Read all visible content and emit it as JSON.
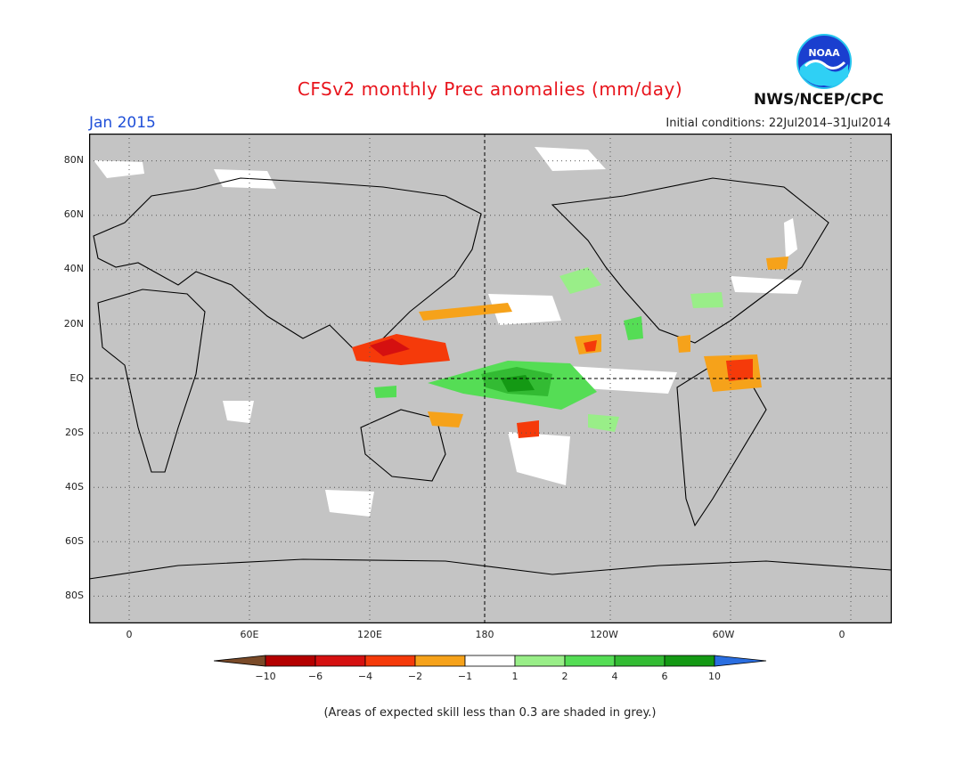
{
  "header": {
    "title": "CFSv2 monthly Prec anomalies (mm/day)",
    "month": "Jan 2015",
    "initial_conditions": "Initial conditions: 22Jul2014–31Jul2014",
    "agency": "NWS/NCEP/CPC",
    "logo_text": "NOAA"
  },
  "map": {
    "background_color": "#c4c4c4",
    "lat_labels": [
      "80N",
      "60N",
      "40N",
      "20N",
      "EQ",
      "20S",
      "40S",
      "60S",
      "80S"
    ],
    "lat_values": [
      80,
      60,
      40,
      20,
      0,
      -20,
      -40,
      -60,
      -80
    ],
    "lon_labels": [
      "0",
      "60E",
      "120E",
      "180",
      "120W",
      "60W",
      "0"
    ],
    "lon_values": [
      0,
      60,
      120,
      180,
      240,
      300,
      360
    ],
    "lon_range": [
      -20,
      380
    ],
    "lat_range": [
      -90,
      90
    ]
  },
  "legend": {
    "labels": [
      "−10",
      "−6",
      "−4",
      "−2",
      "−1",
      "1",
      "2",
      "4",
      "6",
      "10"
    ],
    "colors": [
      "#7a4a28",
      "#b40000",
      "#d51010",
      "#f53a0a",
      "#f6a21a",
      "#ffffff",
      "#99ee88",
      "#55dd55",
      "#33bb33",
      "#149914",
      "#2a6ee0"
    ]
  },
  "footnote": "(Areas of expected skill less than 0.3 are shaded in grey.)"
}
